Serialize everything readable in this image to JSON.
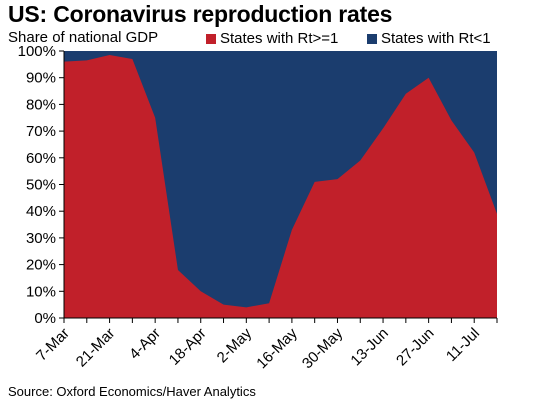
{
  "chart_data": {
    "type": "area",
    "title": "US: Coronavirus reproduction rates",
    "ylabel": "Share of national GDP",
    "source": "Source: Oxford Economics/Haver Analytics",
    "x": [
      "7-Mar",
      "14-Mar",
      "21-Mar",
      "28-Mar",
      "4-Apr",
      "11-Apr",
      "18-Apr",
      "25-Apr",
      "2-May",
      "9-May",
      "16-May",
      "23-May",
      "30-May",
      "6-Jun",
      "13-Jun",
      "20-Jun",
      "27-Jun",
      "4-Jul",
      "11-Jul",
      "18-Jul"
    ],
    "xticks": [
      "7-Mar",
      "21-Mar",
      "4-Apr",
      "18-Apr",
      "2-May",
      "16-May",
      "30-May",
      "13-Jun",
      "27-Jun",
      "11-Jul"
    ],
    "yticks": [
      "0%",
      "10%",
      "20%",
      "30%",
      "40%",
      "50%",
      "60%",
      "70%",
      "80%",
      "90%",
      "100%"
    ],
    "ylim": [
      0,
      100
    ],
    "legend_position": "top",
    "series": [
      {
        "name": "States with Rt>=1",
        "color": "#c1202a",
        "values": [
          96,
          96.5,
          98.5,
          97,
          75,
          18,
          10,
          5,
          4,
          5.5,
          33,
          51,
          52,
          59,
          71,
          84,
          90,
          74,
          62,
          39
        ]
      },
      {
        "name": "States with Rt<1",
        "color": "#1b3d6e",
        "values": [
          4,
          3.5,
          1.5,
          3,
          25,
          82,
          90,
          95,
          96,
          94.5,
          67,
          49,
          48,
          41,
          29,
          16,
          10,
          26,
          38,
          61
        ]
      }
    ]
  }
}
